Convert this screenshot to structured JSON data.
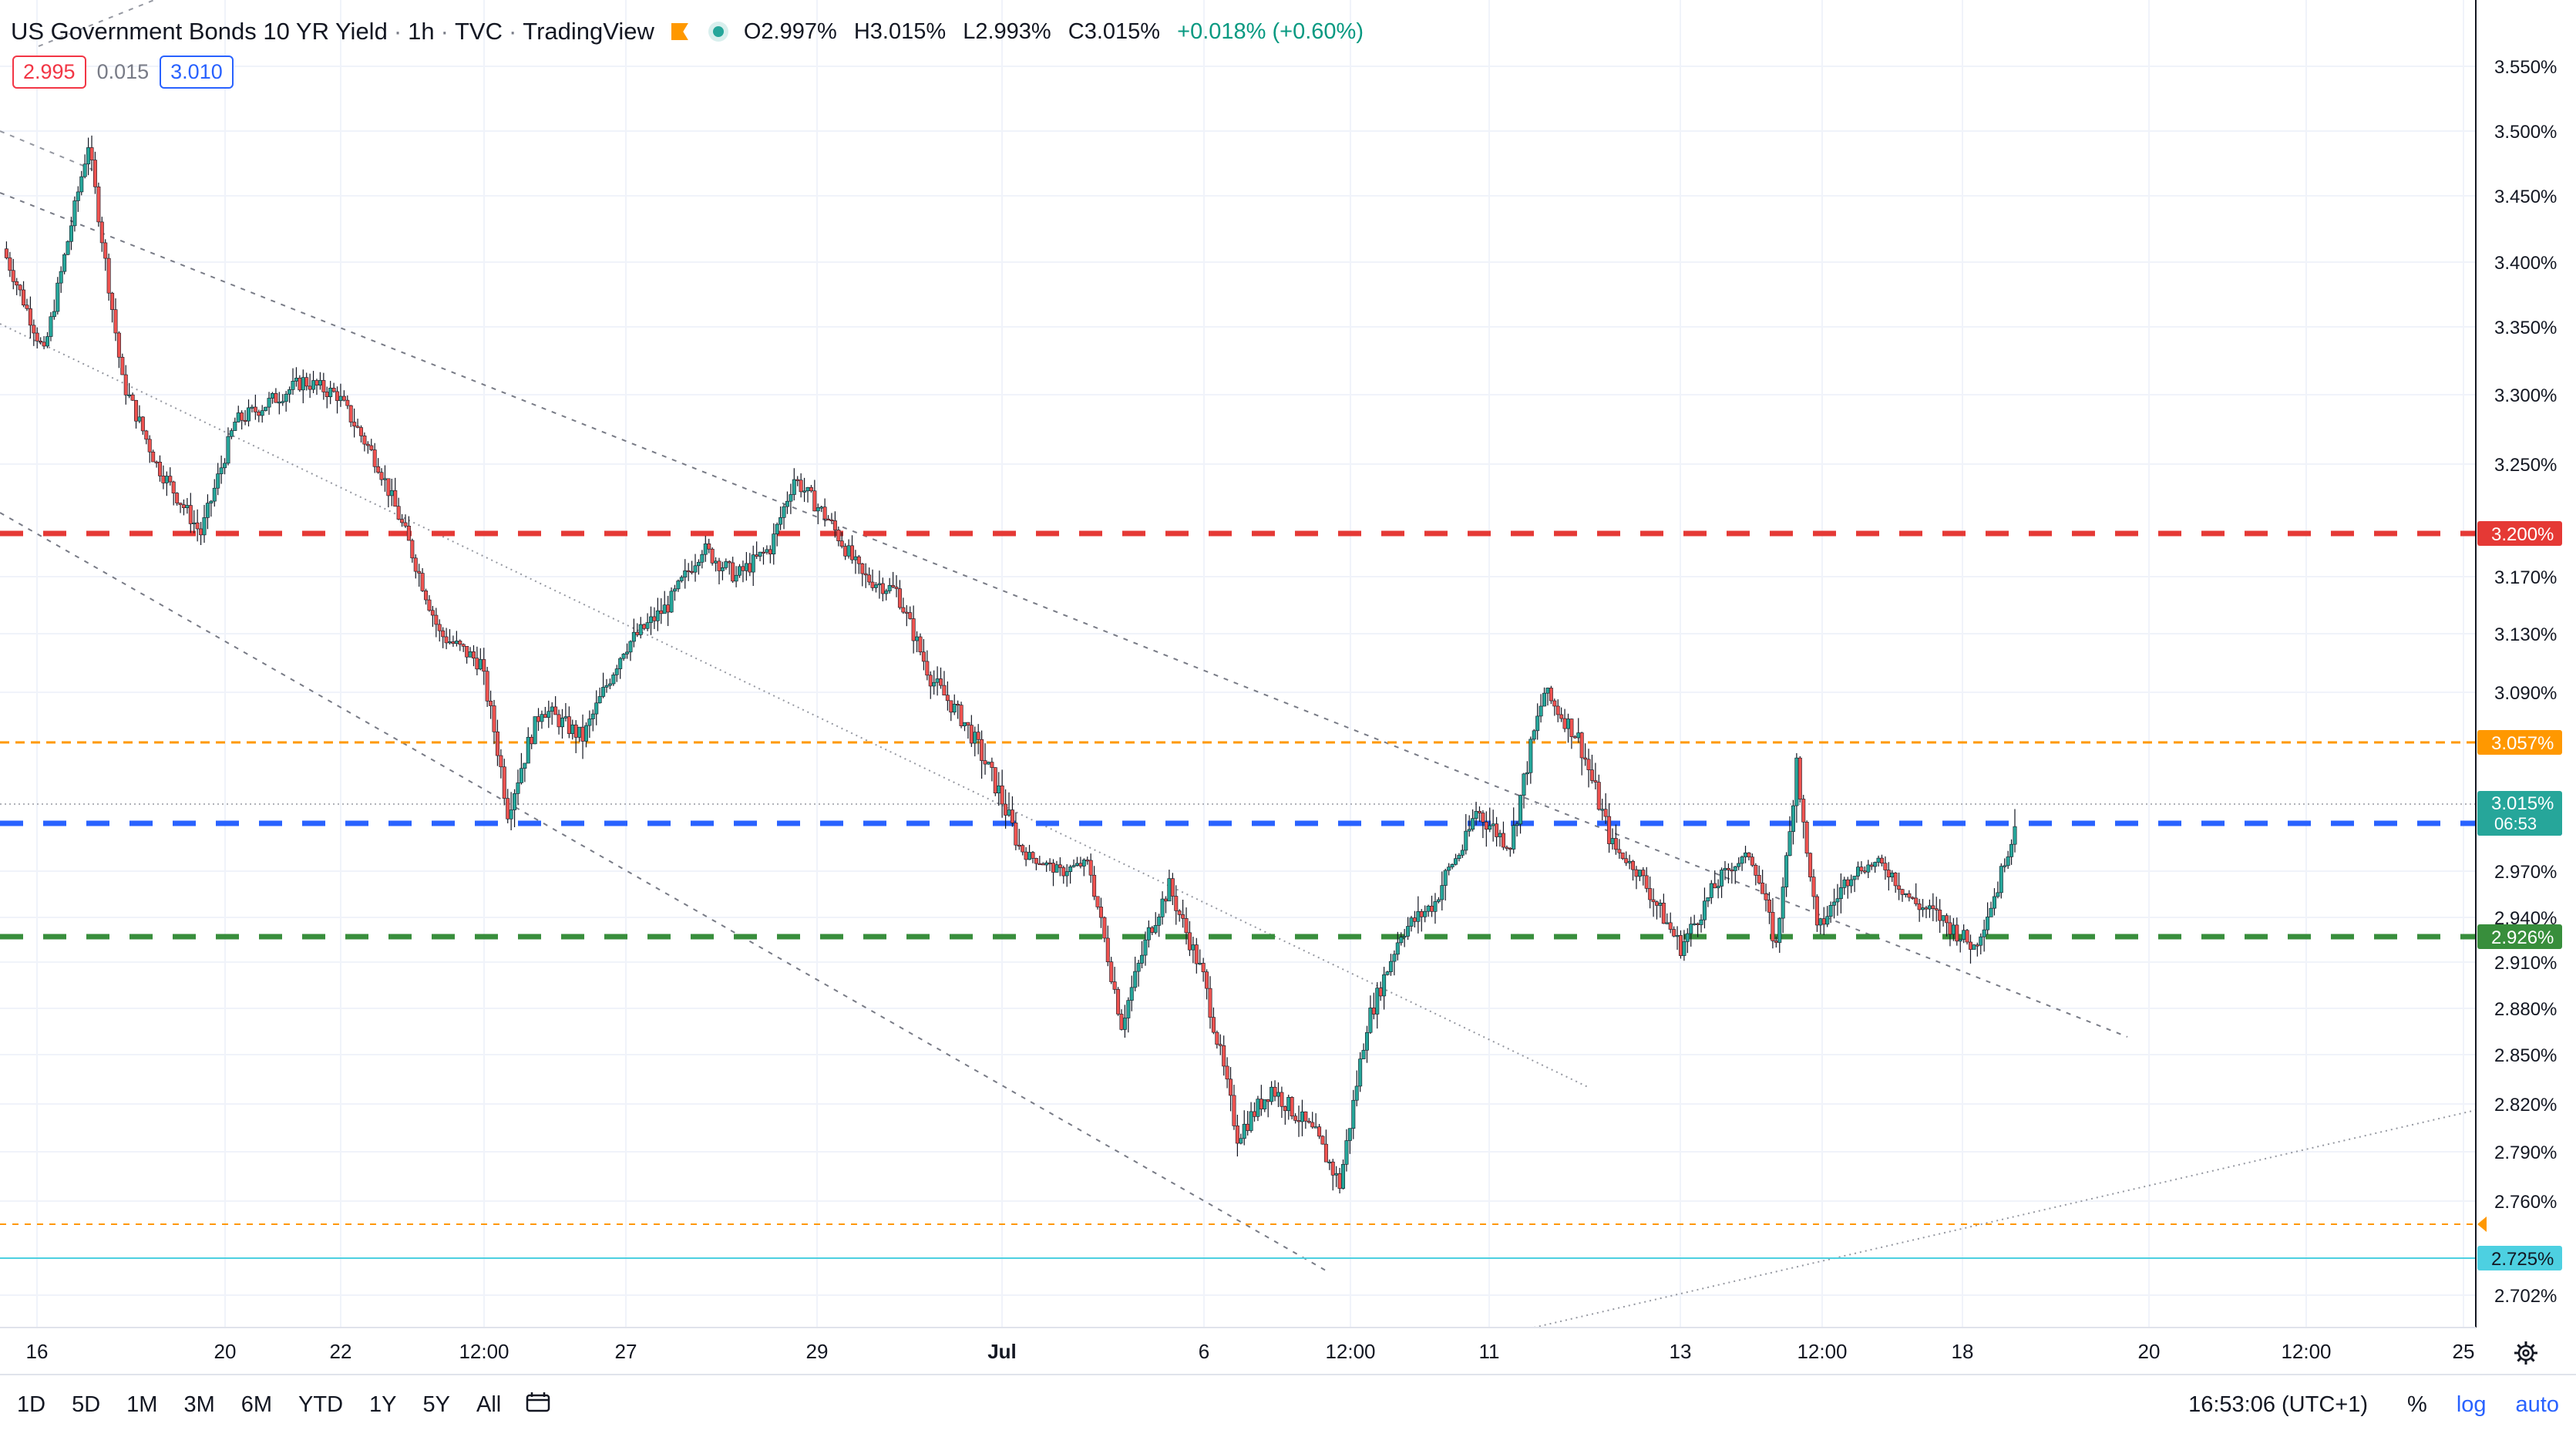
{
  "header": {
    "symbol": "US Government Bonds 10 YR Yield",
    "interval": "1h",
    "exchange": "TVC",
    "source": "TradingView",
    "open": "O2.997%",
    "high": "H3.015%",
    "low": "L2.993%",
    "close": "C3.015%",
    "change": "+0.018% (+0.60%)"
  },
  "quote": {
    "bid": "2.995",
    "spread": "0.015",
    "ask": "3.010"
  },
  "price_axis": {
    "labels": [
      "3.550%",
      "3.500%",
      "3.450%",
      "3.400%",
      "3.350%",
      "3.300%",
      "3.250%",
      "3.170%",
      "3.130%",
      "3.090%",
      "2.970%",
      "2.940%",
      "2.910%",
      "2.880%",
      "2.850%",
      "2.820%",
      "2.790%",
      "2.760%",
      "2.702%"
    ],
    "current_price": "3.015%",
    "countdown": "06:53"
  },
  "time_axis": {
    "labels": [
      "16",
      "20",
      "22",
      "12:00",
      "27",
      "29",
      "Jul",
      "6",
      "12:00",
      "11",
      "13",
      "12:00",
      "18",
      "20",
      "12:00",
      "25"
    ]
  },
  "bottom": {
    "ranges": [
      "1D",
      "5D",
      "1M",
      "3M",
      "6M",
      "YTD",
      "1Y",
      "5Y",
      "All"
    ],
    "clock": "16:53:06 (UTC+1)",
    "percent": "%",
    "log": "log",
    "auto": "auto"
  },
  "colors": {
    "up": "#26a69a",
    "down": "#ef5350",
    "red_line": "#e53935",
    "orange_line": "#ff9800",
    "blue_line": "#2962ff",
    "green_line": "#388e3c",
    "cyan_line": "#4dd0e1",
    "grid": "#f0f3fa"
  },
  "chart_data": {
    "type": "candlestick",
    "ylim": [
      2.68,
      3.58
    ],
    "series": [
      {
        "label": "3.200%",
        "value": 3.2,
        "style": "dashed",
        "color": "#e53935"
      },
      {
        "label": "3.057%",
        "value": 3.057,
        "style": "dashed",
        "color": "#ff9800"
      },
      {
        "label": "3.000%",
        "value": 3.0,
        "style": "dashed",
        "color": "#2962ff"
      },
      {
        "label": "2.926%",
        "value": 2.926,
        "style": "dashed",
        "color": "#388e3c"
      },
      {
        "label": "2.725%",
        "value": 2.725,
        "style": "solid",
        "color": "#4dd0e1"
      }
    ],
    "price_path": [
      [
        0,
        3.41
      ],
      [
        12,
        3.33
      ],
      [
        25,
        3.49
      ],
      [
        35,
        3.31
      ],
      [
        45,
        3.25
      ],
      [
        58,
        3.2
      ],
      [
        68,
        3.28
      ],
      [
        75,
        3.29
      ],
      [
        88,
        3.31
      ],
      [
        98,
        3.3
      ],
      [
        110,
        3.25
      ],
      [
        118,
        3.2
      ],
      [
        128,
        3.13
      ],
      [
        140,
        3.11
      ],
      [
        148,
        3.02
      ],
      [
        158,
        3.08
      ],
      [
        170,
        3.06
      ],
      [
        182,
        3.12
      ],
      [
        195,
        3.15
      ],
      [
        205,
        3.19
      ],
      [
        215,
        3.17
      ],
      [
        225,
        3.19
      ],
      [
        232,
        3.24
      ],
      [
        242,
        3.21
      ],
      [
        252,
        3.17
      ],
      [
        262,
        3.16
      ],
      [
        272,
        3.1
      ],
      [
        282,
        3.07
      ],
      [
        292,
        3.03
      ],
      [
        300,
        2.99
      ],
      [
        310,
        2.97
      ],
      [
        318,
        2.98
      ],
      [
        328,
        2.87
      ],
      [
        336,
        2.93
      ],
      [
        342,
        2.96
      ],
      [
        352,
        2.9
      ],
      [
        362,
        2.8
      ],
      [
        372,
        2.83
      ],
      [
        385,
        2.8
      ],
      [
        392,
        2.77
      ],
      [
        400,
        2.87
      ],
      [
        410,
        2.93
      ],
      [
        420,
        2.95
      ],
      [
        432,
        3.02
      ],
      [
        442,
        3.0
      ],
      [
        452,
        3.09
      ],
      [
        462,
        3.06
      ],
      [
        472,
        3.0
      ],
      [
        482,
        2.96
      ],
      [
        492,
        2.92
      ],
      [
        502,
        2.96
      ],
      [
        512,
        2.99
      ],
      [
        520,
        2.92
      ],
      [
        526,
        3.05
      ],
      [
        532,
        2.93
      ],
      [
        542,
        2.97
      ],
      [
        550,
        2.98
      ],
      [
        560,
        2.95
      ],
      [
        568,
        2.94
      ],
      [
        578,
        2.92
      ],
      [
        585,
        2.96
      ],
      [
        590,
        3.015
      ]
    ]
  }
}
